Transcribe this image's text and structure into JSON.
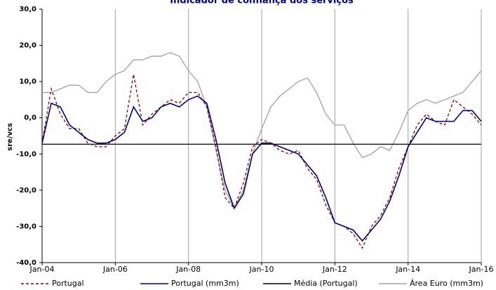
{
  "chart_data": {
    "type": "line",
    "title": "Indicador de confiança dos serviços",
    "y_label": "sre/vcs",
    "x": [
      "Jan-04",
      "Apr-04",
      "Jul-04",
      "Oct-04",
      "Jan-05",
      "Apr-05",
      "Jul-05",
      "Oct-05",
      "Jan-06",
      "Apr-06",
      "Jul-06",
      "Oct-06",
      "Jan-07",
      "Apr-07",
      "Jul-07",
      "Oct-07",
      "Jan-08",
      "Apr-08",
      "Jul-08",
      "Oct-08",
      "Jan-09",
      "Apr-09",
      "Jul-09",
      "Oct-09",
      "Jan-10",
      "Apr-10",
      "Jul-10",
      "Oct-10",
      "Jan-11",
      "Apr-11",
      "Jul-11",
      "Oct-11",
      "Jan-12",
      "Apr-12",
      "Jul-12",
      "Oct-12",
      "Jan-13",
      "Apr-13",
      "Jul-13",
      "Oct-13",
      "Jan-14",
      "Apr-14",
      "Jul-14",
      "Oct-14",
      "Jan-15",
      "Apr-15",
      "Jul-15",
      "Oct-15",
      "Jan-16"
    ],
    "series": [
      {
        "name": "Portugal",
        "color": "#8b0000",
        "dash": "4 3",
        "values": [
          -7,
          8,
          1,
          -3,
          -3,
          -7,
          -8,
          -8,
          -5,
          -3,
          12,
          -2,
          1,
          3,
          5,
          4,
          7,
          7,
          3,
          -8,
          -22,
          -25,
          -18,
          -8,
          -6,
          -7,
          -9,
          -10,
          -9,
          -14,
          -17,
          -24,
          -29,
          -30,
          -32,
          -36,
          -30,
          -27,
          -22,
          -14,
          -8,
          -2,
          1,
          -1,
          -2,
          5,
          3,
          1,
          -2
        ]
      },
      {
        "name": "Portugal (mm3m)",
        "color": "#000080",
        "values": [
          -7,
          4,
          3,
          -2,
          -4,
          -6,
          -7,
          -7,
          -6,
          -4,
          3,
          -1,
          0,
          3,
          4,
          3,
          5,
          6,
          4,
          -6,
          -18,
          -25,
          -21,
          -10,
          -7,
          -7,
          -8,
          -9,
          -10,
          -13,
          -16,
          -22,
          -29,
          -30,
          -31,
          -34,
          -31,
          -28,
          -23,
          -16,
          -8,
          -4,
          0,
          -1,
          -1,
          -1,
          2,
          2,
          -1
        ]
      },
      {
        "name": "Média (Portugal)",
        "color": "#000000",
        "values": [
          -7.3,
          -7.3,
          -7.3,
          -7.3,
          -7.3,
          -7.3,
          -7.3,
          -7.3,
          -7.3,
          -7.3,
          -7.3,
          -7.3,
          -7.3,
          -7.3,
          -7.3,
          -7.3,
          -7.3,
          -7.3,
          -7.3,
          -7.3,
          -7.3,
          -7.3,
          -7.3,
          -7.3,
          -7.3,
          -7.3,
          -7.3,
          -7.3,
          -7.3,
          -7.3,
          -7.3,
          -7.3,
          -7.3,
          -7.3,
          -7.3,
          -7.3,
          -7.3,
          -7.3,
          -7.3,
          -7.3,
          -7.3,
          -7.3,
          -7.3,
          -7.3,
          -7.3,
          -7.3,
          -7.3,
          -7.3,
          -7.3
        ]
      },
      {
        "name": "Área Euro (mm3m)",
        "color": "#a0a0a0",
        "values": [
          7,
          7,
          8,
          9,
          9,
          7,
          7,
          10,
          12,
          13,
          16,
          16,
          17,
          17,
          18,
          17,
          13,
          10,
          3,
          -9,
          -20,
          -25,
          -20,
          -10,
          -3,
          3,
          6,
          8,
          10,
          11,
          7,
          1,
          -2,
          -2,
          -7,
          -11,
          -10,
          -8,
          -9,
          -4,
          2,
          4,
          5,
          4,
          5,
          6,
          7,
          10,
          13
        ]
      }
    ],
    "xlim": [
      "Jan-04",
      "Jan-16"
    ],
    "xticks": [
      "Jan-04",
      "Jan-06",
      "Jan-08",
      "Jan-10",
      "Jan-12",
      "Jan-14",
      "Jan-16"
    ],
    "ylim": [
      -40,
      30
    ],
    "yticks": [
      {
        "value": -40,
        "label": "-40,0"
      },
      {
        "value": -30,
        "label": "-30,0"
      },
      {
        "value": -20,
        "label": "-20,0"
      },
      {
        "value": -10,
        "label": "-10,0"
      },
      {
        "value": 0,
        "label": "0,0"
      },
      {
        "value": 10,
        "label": "10,0"
      },
      {
        "value": 20,
        "label": "20,0"
      },
      {
        "value": 30,
        "label": "30,0"
      }
    ],
    "grid": "x",
    "legend": "bottom"
  }
}
